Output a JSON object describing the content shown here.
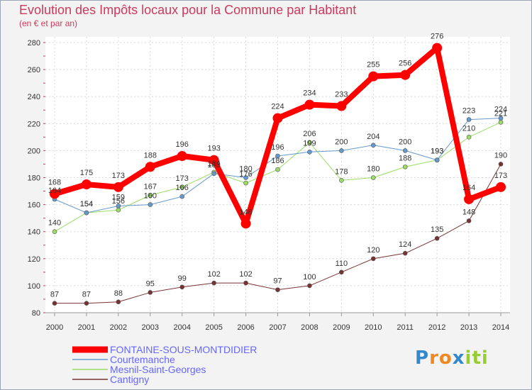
{
  "chart_data": {
    "type": "line",
    "title": "Evolution des Impôts locaux pour la Commune par Habitant",
    "subtitle": "(en € et par an)",
    "x": [
      2000,
      2001,
      2002,
      2003,
      2004,
      2005,
      2006,
      2007,
      2008,
      2009,
      2010,
      2011,
      2012,
      2013,
      2014
    ],
    "ylim": [
      80,
      280
    ],
    "yticks": [
      80,
      100,
      120,
      140,
      160,
      180,
      200,
      220,
      240,
      260,
      280
    ],
    "grid": true,
    "legend_position": "bottom-left",
    "series": [
      {
        "name": "FONTAINE-SOUS-MONTDIDIER",
        "color": "#ff0000",
        "values": [
          168,
          175,
          173,
          188,
          196,
          193,
          146,
          224,
          234,
          233,
          255,
          256,
          276,
          164,
          173
        ]
      },
      {
        "name": "Courtemanche",
        "color": "#6699cc",
        "values": [
          164,
          154,
          159,
          160,
          166,
          183,
          180,
          196,
          199,
          200,
          204,
          200,
          193,
          223,
          224
        ]
      },
      {
        "name": "Mesnil-Saint-Georges",
        "color": "#99dd66",
        "values": [
          140,
          154,
          156,
          167,
          173,
          184,
          176,
          186,
          206,
          178,
          180,
          188,
          193,
          210,
          221
        ]
      },
      {
        "name": "Cantigny",
        "color": "#773333",
        "values": [
          87,
          87,
          88,
          95,
          99,
          102,
          102,
          97,
          100,
          110,
          120,
          124,
          135,
          148,
          190
        ]
      }
    ],
    "data_labels": [
      [
        168,
        175,
        173,
        188,
        196,
        193,
        146,
        224,
        234,
        233,
        255,
        256,
        276,
        164,
        173
      ],
      [
        164,
        154,
        159,
        160,
        166,
        183,
        180,
        196,
        199,
        200,
        204,
        200,
        193,
        223,
        224
      ],
      [
        140,
        154,
        156,
        167,
        173,
        184,
        176,
        186,
        206,
        178,
        180,
        188,
        193,
        210,
        221
      ],
      [
        87,
        87,
        88,
        95,
        99,
        102,
        102,
        97,
        100,
        110,
        120,
        124,
        135,
        148,
        190
      ]
    ]
  },
  "brand": {
    "letters": [
      "P",
      "r",
      "o",
      "x",
      "i",
      "t",
      "i"
    ],
    "colors": [
      "#3388cc",
      "#ee8822",
      "#ee8822",
      "#3388cc",
      "#99cc33",
      "#99cc33",
      "#99cc33"
    ]
  }
}
